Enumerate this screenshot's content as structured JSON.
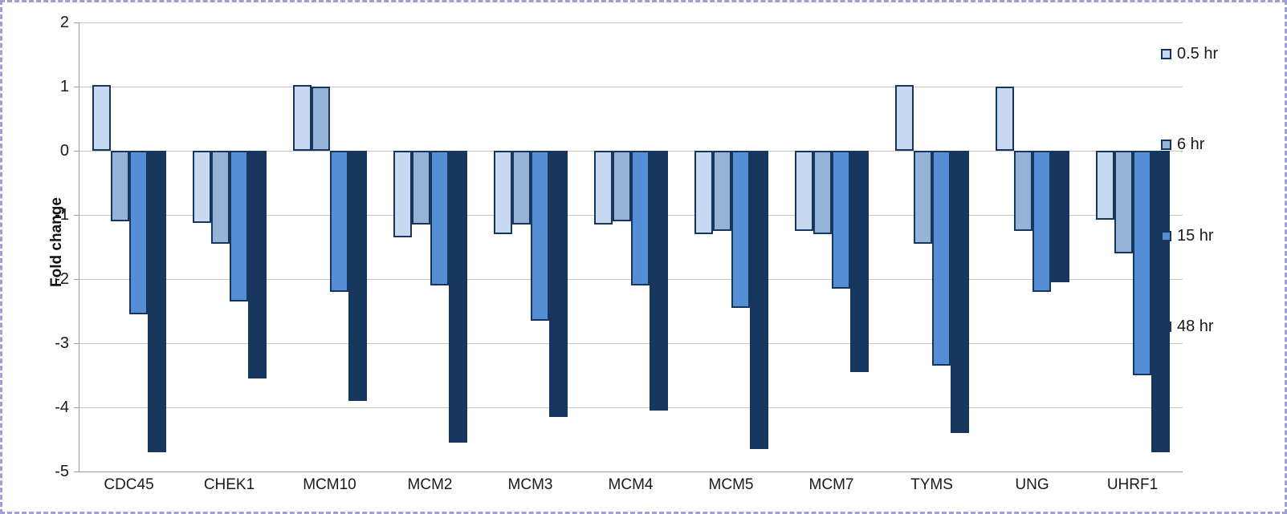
{
  "chart_data": {
    "type": "bar",
    "title": "",
    "xlabel": "",
    "ylabel": "Fold change",
    "ylim": [
      -5,
      2
    ],
    "ytick_step": 1,
    "yticks": [
      2,
      1,
      0,
      -1,
      -2,
      -3,
      -4,
      -5
    ],
    "grid": "horizontal",
    "legend_position": "right",
    "categories": [
      "CDC45",
      "CHEK1",
      "MCM10",
      "MCM2",
      "MCM3",
      "MCM4",
      "MCM5",
      "MCM7",
      "TYMS",
      "UNG",
      "UHRF1"
    ],
    "series": [
      {
        "name": "0.5 hr",
        "color": "#c6d9f1",
        "values": [
          1.02,
          -1.12,
          1.03,
          -1.35,
          -1.3,
          -1.15,
          -1.3,
          -1.25,
          1.03,
          1.0,
          -1.08
        ]
      },
      {
        "name": "6 hr",
        "color": "#95b3d7",
        "values": [
          -1.1,
          -1.45,
          1.0,
          -1.15,
          -1.15,
          -1.1,
          -1.25,
          -1.3,
          -1.45,
          -1.25,
          -1.6
        ]
      },
      {
        "name": "15 hr",
        "color": "#558ed5",
        "values": [
          -2.55,
          -2.35,
          -2.2,
          -2.1,
          -2.65,
          -2.1,
          -2.45,
          -2.15,
          -3.35,
          -2.2,
          -3.5
        ]
      },
      {
        "name": "48 hr",
        "color": "#17375e",
        "values": [
          -4.7,
          -3.55,
          -3.9,
          -4.55,
          -4.15,
          -4.05,
          -4.65,
          -3.45,
          -4.4,
          -2.05,
          -4.7
        ]
      }
    ]
  },
  "colors": {
    "bar_border": "#16365c",
    "gridline": "#c6c6c6",
    "axis_line": "#9a9a9a",
    "text": "#1a1a1a",
    "background": "#ffffff",
    "selection_dash_border": "#9da1d1"
  }
}
